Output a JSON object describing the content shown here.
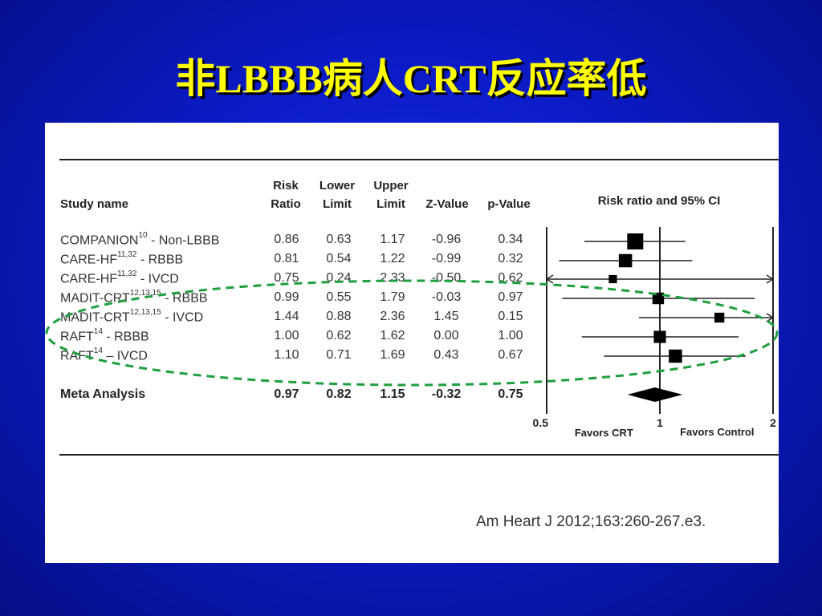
{
  "title": "非LBBB病人CRT反应率低",
  "citation": "Am Heart J 2012;163:260-267.e3.",
  "headers": {
    "study": "Study name",
    "rr": [
      "Risk",
      "Ratio"
    ],
    "lower": [
      "Lower",
      "Limit"
    ],
    "upper": [
      "Upper",
      "Limit"
    ],
    "z": "Z-Value",
    "p": "p-Value",
    "plot": "Risk ratio and 95% CI"
  },
  "studies": [
    {
      "name": "COMPANION",
      "sup": "10",
      "suffix": " - Non-LBBB",
      "rr": "0.86",
      "lower": "0.63",
      "upper": "1.17",
      "z": "-0.96",
      "p": "0.34"
    },
    {
      "name": "CARE-HF",
      "sup": "11,32",
      "suffix": " - RBBB",
      "rr": "0.81",
      "lower": "0.54",
      "upper": "1.22",
      "z": "-0.99",
      "p": "0.32"
    },
    {
      "name": "CARE-HF",
      "sup": "11,32",
      "suffix": " - IVCD",
      "rr": "0.75",
      "lower": "0.24",
      "upper": "2.33",
      "z": "-0.50",
      "p": "0.62"
    },
    {
      "name": "MADIT-CRT",
      "sup": "12,13,15",
      "suffix": " - RBBB",
      "rr": "0.99",
      "lower": "0.55",
      "upper": "1.79",
      "z": "-0.03",
      "p": "0.97"
    },
    {
      "name": "MADIT-CRT",
      "sup": "12,13,15",
      "suffix": " - IVCD",
      "rr": "1.44",
      "lower": "0.88",
      "upper": "2.36",
      "z": "1.45",
      "p": "0.15"
    },
    {
      "name": "RAFT",
      "sup": "14",
      "suffix": " - RBBB",
      "rr": "1.00",
      "lower": "0.62",
      "upper": "1.62",
      "z": "0.00",
      "p": "1.00"
    },
    {
      "name": "RAFT",
      "sup": "14",
      "suffix": " – IVCD",
      "rr": "1.10",
      "lower": "0.71",
      "upper": "1.69",
      "z": "0.43",
      "p": "0.67"
    }
  ],
  "meta": {
    "name": "Meta Analysis",
    "rr": "0.97",
    "lower": "0.82",
    "upper": "1.15",
    "z": "-0.32",
    "p": "0.75"
  },
  "chart_data": {
    "type": "forest",
    "title": "Risk ratio and 95% CI",
    "x_scale": "log",
    "xlim": [
      0.5,
      2
    ],
    "x_ticks": [
      "0.5",
      "1",
      "2"
    ],
    "favors_left": "Favors CRT",
    "favors_right": "Favors Control",
    "studies": [
      {
        "rr": 0.86,
        "lower": 0.63,
        "upper": 1.17,
        "weight": 1.0
      },
      {
        "rr": 0.81,
        "lower": 0.54,
        "upper": 1.22,
        "weight": 0.75
      },
      {
        "rr": 0.75,
        "lower": 0.24,
        "upper": 2.33,
        "weight": 0.3
      },
      {
        "rr": 0.99,
        "lower": 0.55,
        "upper": 1.79,
        "weight": 0.6
      },
      {
        "rr": 1.44,
        "lower": 0.88,
        "upper": 2.36,
        "weight": 0.45
      },
      {
        "rr": 1.0,
        "lower": 0.62,
        "upper": 1.62,
        "weight": 0.65
      },
      {
        "rr": 1.1,
        "lower": 0.71,
        "upper": 1.69,
        "weight": 0.75
      }
    ],
    "meta": {
      "rr": 0.97,
      "lower": 0.82,
      "upper": 1.15
    },
    "highlight_color": "#1e9e3c",
    "title_color": "#ffff00"
  }
}
